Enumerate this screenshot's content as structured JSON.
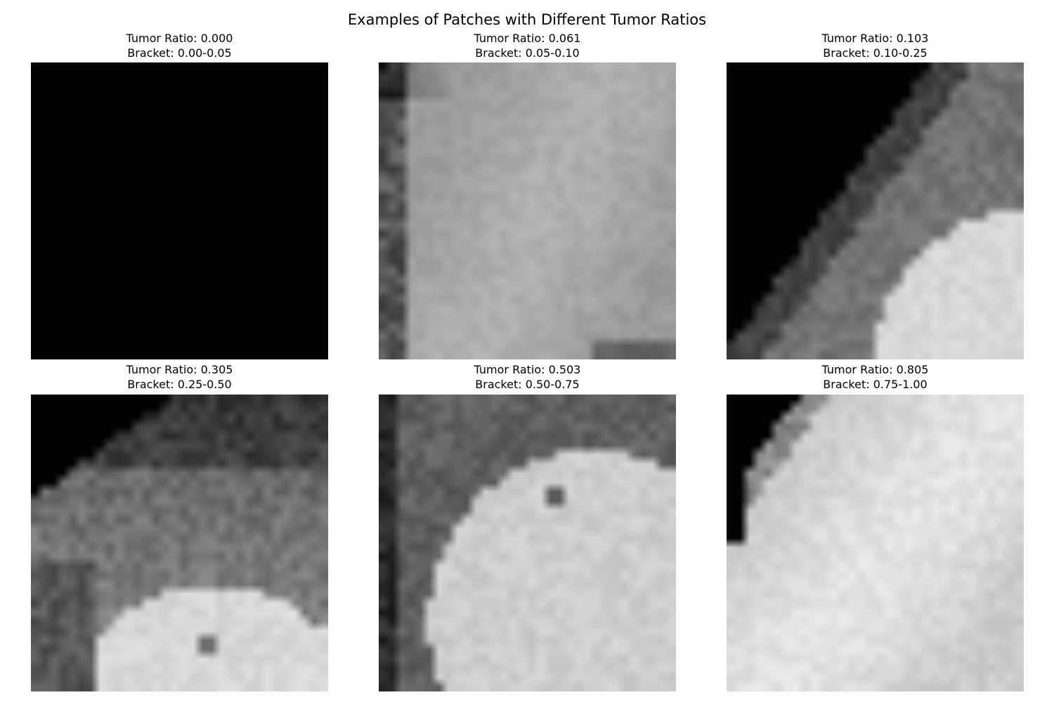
{
  "figure": {
    "title": "Examples of Patches with Different Tumor Ratios"
  },
  "panels": [
    {
      "ratio_label": "Tumor Ratio: 0.000",
      "bracket_label": "Bracket: 0.00-0.05",
      "tumor_ratio": 0.0,
      "content": "all-black (outside brain)"
    },
    {
      "ratio_label": "Tumor Ratio: 0.061",
      "bracket_label": "Bracket: 0.05-0.10",
      "tumor_ratio": 0.061,
      "content": "uniform mid-gray tissue, dark left edge"
    },
    {
      "ratio_label": "Tumor Ratio: 0.103",
      "bracket_label": "Bracket: 0.10-0.25",
      "tumor_ratio": 0.103,
      "content": "black upper-left background, gray tissue, bright lower-right region"
    },
    {
      "ratio_label": "Tumor Ratio: 0.305",
      "bracket_label": "Bracket: 0.25-0.50",
      "tumor_ratio": 0.305,
      "content": "black upper-left corner, dark-gray band, bright lower region"
    },
    {
      "ratio_label": "Tumor Ratio: 0.503",
      "bracket_label": "Bracket: 0.50-0.75",
      "tumor_ratio": 0.503,
      "content": "gray left and top border, bright rounded region"
    },
    {
      "ratio_label": "Tumor Ratio: 0.805",
      "bracket_label": "Bracket: 0.75-1.00",
      "tumor_ratio": 0.805,
      "content": "small black upper-left corner, mostly bright region"
    }
  ],
  "colormap": "gray"
}
